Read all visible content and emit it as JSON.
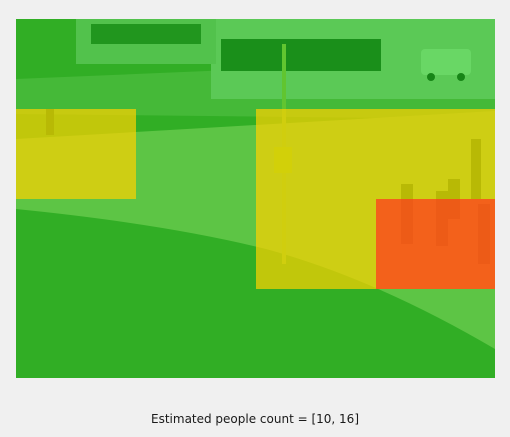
{
  "caption": "Estimated people count = [10, 16]",
  "density_levels": [
    {
      "level": "low",
      "color": "#00c800"
    },
    {
      "level": "medium",
      "color": "#ffcc00"
    },
    {
      "level": "high",
      "color": "#ff3a1a"
    }
  ],
  "scene_objects": [
    "building",
    "parked-van",
    "lamp-post",
    "road-sign",
    "paved-path",
    "grass-area",
    "pedestrians"
  ]
}
